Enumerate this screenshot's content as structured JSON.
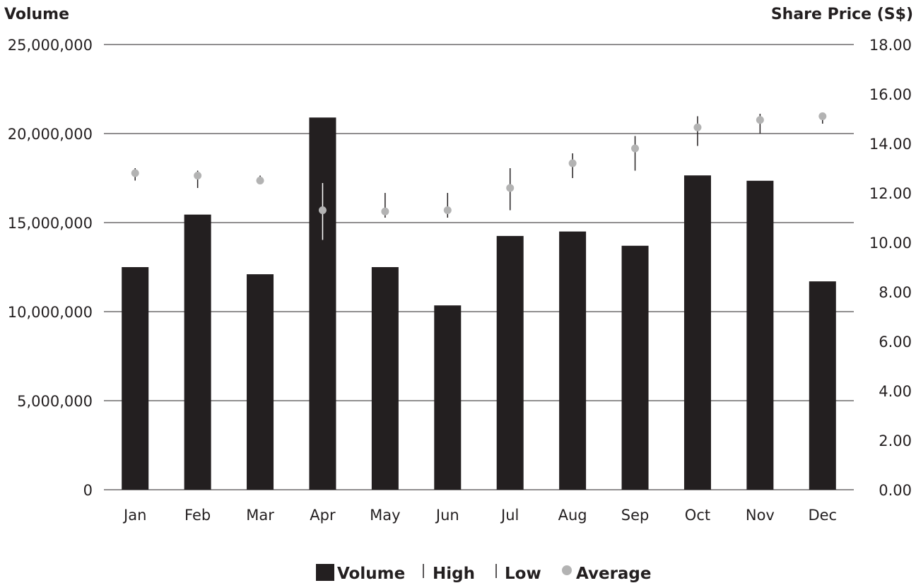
{
  "chart_data": {
    "type": "bar",
    "categories": [
      "Jan",
      "Feb",
      "Mar",
      "Apr",
      "May",
      "Jun",
      "Jul",
      "Aug",
      "Sep",
      "Oct",
      "Nov",
      "Dec"
    ],
    "volume": [
      12500000,
      15450000,
      12100000,
      20900000,
      12500000,
      10350000,
      14250000,
      14500000,
      13700000,
      17650000,
      17350000,
      11700000
    ],
    "price_high": [
      13.0,
      12.9,
      12.7,
      12.4,
      12.0,
      12.0,
      13.0,
      13.6,
      14.3,
      15.1,
      15.2,
      15.1
    ],
    "price_low": [
      12.5,
      12.2,
      12.4,
      10.1,
      11.0,
      11.0,
      11.3,
      12.6,
      12.9,
      13.9,
      14.4,
      14.8
    ],
    "price_average": [
      12.8,
      12.7,
      12.5,
      11.3,
      11.25,
      11.3,
      12.2,
      13.2,
      13.8,
      14.65,
      14.95,
      15.1
    ],
    "left_axis": {
      "title": "Volume",
      "min": 0,
      "max": 25000000,
      "ticks": [
        "0",
        "5,000,000",
        "10,000,000",
        "15,000,000",
        "20,000,000",
        "25,000,000"
      ]
    },
    "right_axis": {
      "title": "Share Price (S$)",
      "min": 0,
      "max": 18,
      "ticks": [
        "0.00",
        "2.00",
        "4.00",
        "6.00",
        "8.00",
        "10.00",
        "12.00",
        "14.00",
        "16.00",
        "18.00"
      ]
    },
    "legend": {
      "placement": "bottom-center",
      "items": [
        "Volume",
        "High",
        "Low",
        "Average"
      ]
    },
    "colors": {
      "bar": "#231f20",
      "range_line": "#231f20",
      "range_line_on_bar": "#ffffff",
      "average_marker": "#b3b3b3",
      "gridline": "#231f20"
    },
    "grid": true
  }
}
